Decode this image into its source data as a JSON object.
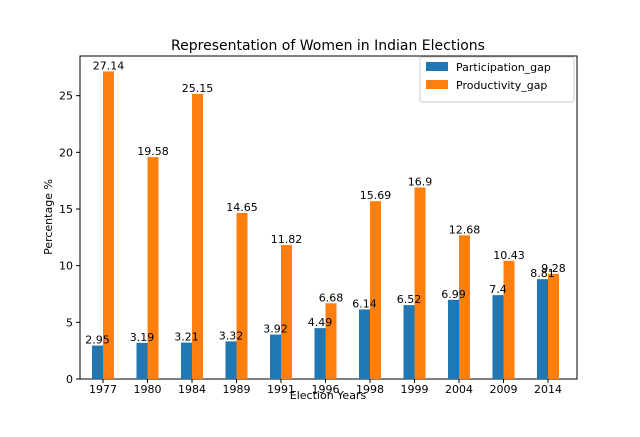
{
  "chart_data": {
    "type": "bar",
    "title": "Representation of Women in Indian Elections",
    "xlabel": "Election Years",
    "ylabel": "Percentage %",
    "categories": [
      "1977",
      "1980",
      "1984",
      "1989",
      "1991",
      "1996",
      "1998",
      "1999",
      "2004",
      "2009",
      "2014"
    ],
    "series": [
      {
        "name": "Participation_gap",
        "color": "#1f77b4",
        "values": [
          2.95,
          3.19,
          3.21,
          3.32,
          3.92,
          4.49,
          6.14,
          6.52,
          6.99,
          7.4,
          8.81
        ],
        "labels": [
          "2.95",
          "3.19",
          "3.21",
          "3.32",
          "3.92",
          "4.49",
          "6.14",
          "6.52",
          "6.99",
          "7.4",
          "8.81"
        ]
      },
      {
        "name": "Productivity_gap",
        "color": "#ff7f0e",
        "values": [
          27.14,
          19.58,
          25.15,
          14.65,
          11.82,
          6.68,
          15.69,
          16.9,
          12.68,
          10.43,
          9.28
        ],
        "labels": [
          "27.14",
          "19.58",
          "25.15",
          "14.65",
          "11.82",
          "6.68",
          "15.69",
          "16.9",
          "12.68",
          "10.43",
          "9.28"
        ]
      }
    ],
    "ylim": [
      0,
      28.5
    ],
    "yticks": [
      0,
      5,
      10,
      15,
      20,
      25
    ],
    "ytick_labels": [
      "0",
      "5",
      "10",
      "15",
      "20",
      "25"
    ],
    "grid": false,
    "legend_position": "top-right"
  }
}
